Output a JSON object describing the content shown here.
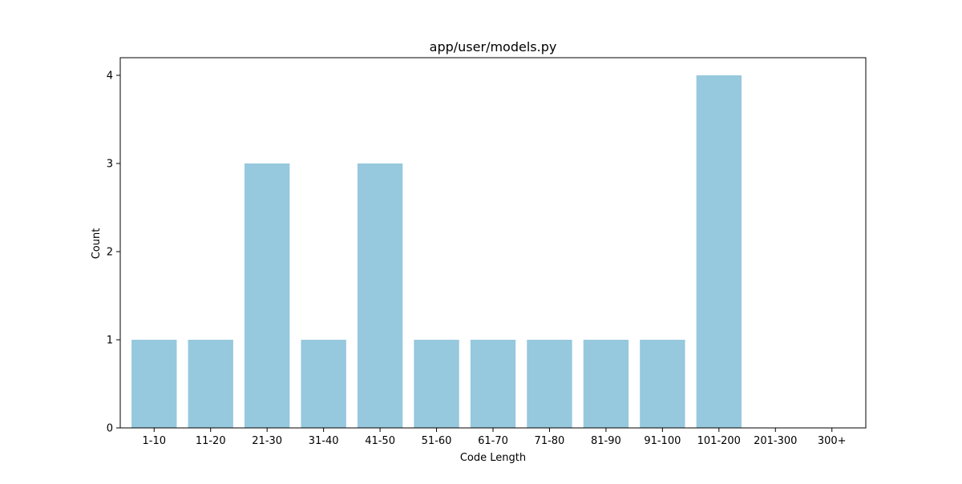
{
  "chart_data": {
    "type": "bar",
    "title": "app/user/models.py",
    "xlabel": "Code Length",
    "ylabel": "Count",
    "categories": [
      "1-10",
      "11-20",
      "21-30",
      "31-40",
      "41-50",
      "51-60",
      "61-70",
      "71-80",
      "81-90",
      "91-100",
      "101-200",
      "201-300",
      "300+"
    ],
    "values": [
      1,
      1,
      3,
      1,
      3,
      1,
      1,
      1,
      1,
      1,
      4,
      0,
      0
    ],
    "ylim": [
      0,
      4.2
    ],
    "yticks": [
      0,
      1,
      2,
      3,
      4
    ],
    "grid": false,
    "colors": {
      "bar": "#96c8de",
      "axis": "#000000",
      "background": "#ffffff"
    }
  }
}
